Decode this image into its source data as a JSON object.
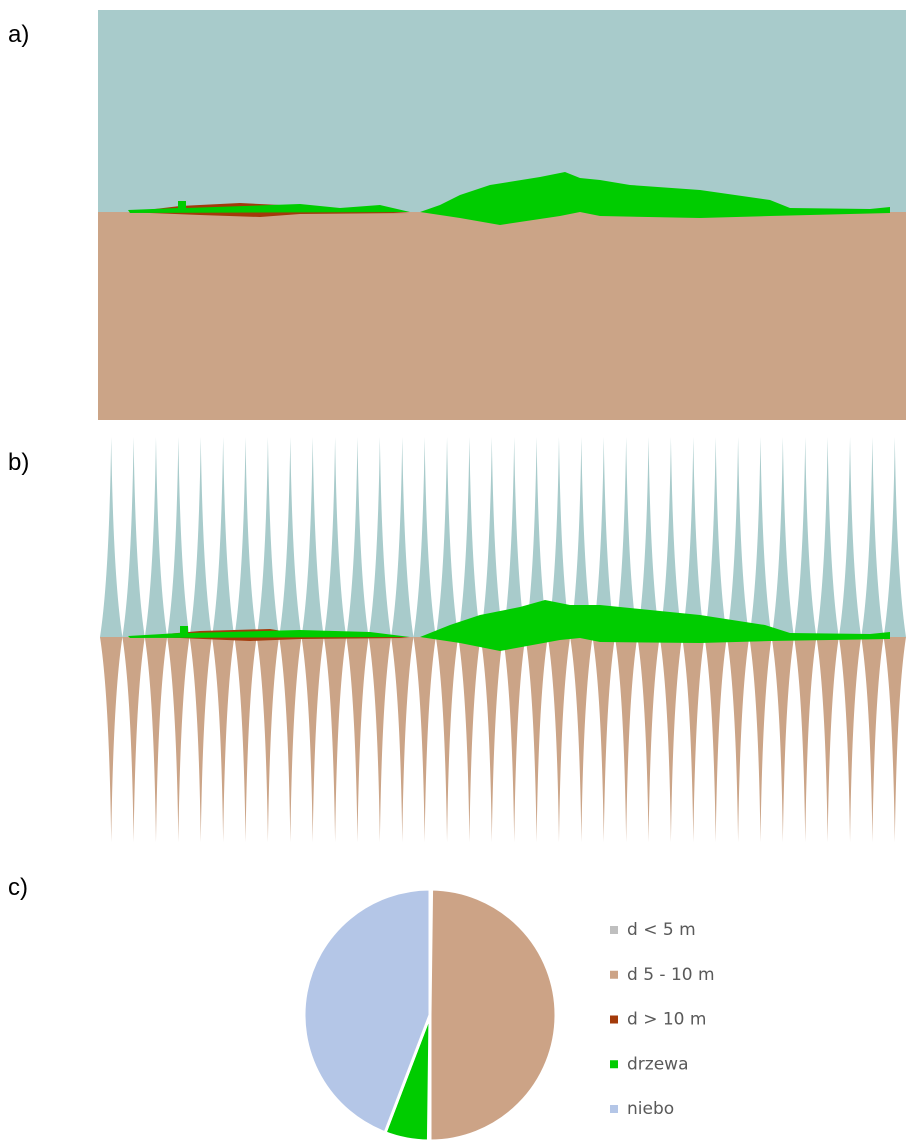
{
  "panels": [
    {
      "label": "a)"
    },
    {
      "label": "b)"
    }
  ],
  "chart_data": {
    "type": "pie",
    "label": "c)",
    "categories": [
      "d < 5 m",
      "d 5 - 10 m",
      "d > 10 m",
      "drzewa",
      "niebo"
    ],
    "values": [
      0.2,
      49.8,
      0.2,
      5.6,
      44.2
    ],
    "colors": [
      "#bfbfbf",
      "#cca386",
      "#a33a0a",
      "#00cc00",
      "#b4c6e7"
    ],
    "legend": "right"
  }
}
